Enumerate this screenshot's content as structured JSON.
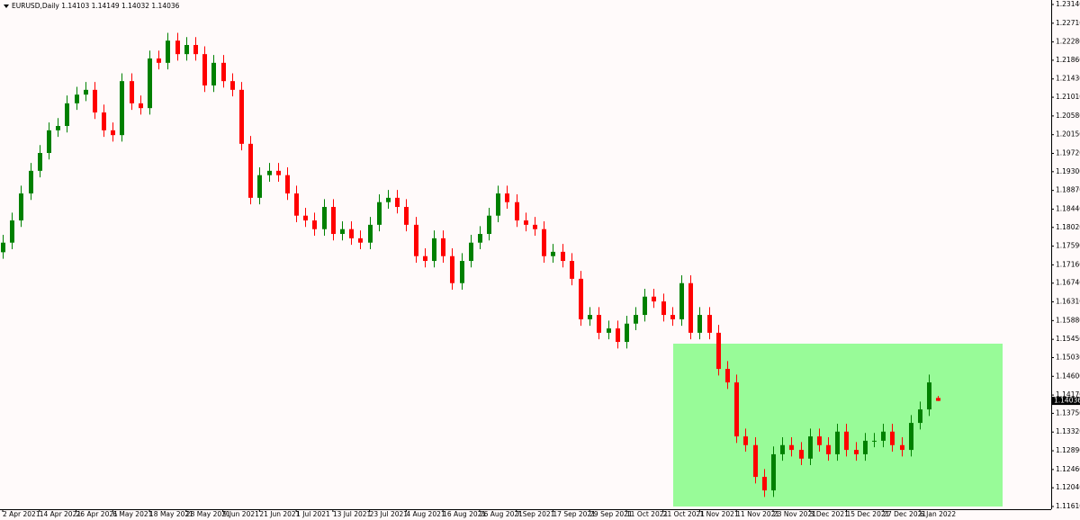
{
  "chart_data": {
    "type": "candlestick",
    "title": "EURUSD,Daily  1.14103 1.14149 1.14032 1.14036",
    "categories": [
      "2 Apr 2021",
      null,
      null,
      null,
      "14 Apr 2021",
      null,
      null,
      null,
      "26 Apr 2021",
      null,
      null,
      null,
      "6 May 2021",
      null,
      null,
      null,
      "18 May 2021",
      null,
      null,
      null,
      "28 May 2021",
      null,
      null,
      null,
      "9 Jun 2021",
      null,
      null,
      null,
      "21 Jun 2021",
      null,
      null,
      null,
      "1 Jul 2021",
      null,
      null,
      null,
      "13 Jul 2021",
      null,
      null,
      null,
      "23 Jul 2021",
      null,
      null,
      null,
      "4 Aug 2021",
      null,
      null,
      null,
      "16 Aug 2021",
      null,
      null,
      null,
      "26 Aug 2021",
      null,
      null,
      null,
      "7 Sep 2021",
      null,
      null,
      null,
      "17 Sep 2021",
      null,
      null,
      null,
      "29 Sep 2021",
      null,
      null,
      null,
      "11 Oct 2021",
      null,
      null,
      null,
      "21 Oct 2021",
      null,
      null,
      null,
      "1 Nov 2021",
      null,
      null,
      null,
      "11 Nov 2021",
      null,
      null,
      null,
      "23 Nov 2021",
      null,
      null,
      null,
      "3 Dec 2021",
      null,
      null,
      null,
      "15 Dec 2021",
      null,
      null,
      null,
      "27 Dec 2021",
      null,
      null,
      null,
      "6 Jan 2022",
      null,
      null
    ],
    "open": [
      1.1745,
      1.1767,
      1.1818,
      1.188,
      1.1932,
      1.1973,
      1.2025,
      1.2035,
      1.2087,
      1.2107,
      1.2118,
      1.2066,
      1.2025,
      1.2014,
      1.2138,
      1.2087,
      1.2076,
      1.219,
      1.218,
      1.2231,
      1.22,
      1.2221,
      1.22,
      1.2128,
      1.218,
      1.2138,
      1.2118,
      1.1994,
      1.187,
      1.1922,
      1.1932,
      1.1922,
      1.188,
      1.1829,
      1.1818,
      1.1798,
      1.1849,
      1.1787,
      1.1798,
      1.1777,
      1.1767,
      1.1808,
      1.186,
      1.187,
      1.1849,
      1.1808,
      1.1736,
      1.1725,
      1.1777,
      1.1736,
      1.1674,
      1.1725,
      1.1767,
      1.1787,
      1.1829,
      1.188,
      1.186,
      1.1818,
      1.1808,
      1.1798,
      1.1736,
      1.1746,
      1.1725,
      1.1684,
      1.1591,
      1.1601,
      1.156,
      1.157,
      1.1539,
      1.1581,
      1.1601,
      1.1643,
      1.1632,
      1.1601,
      1.1591,
      1.1674,
      1.156,
      1.1601,
      1.156,
      1.1477,
      1.1446,
      1.1322,
      1.1302,
      1.1229,
      1.1198,
      1.1281,
      1.1302,
      1.1291,
      1.1271,
      1.1322,
      1.1302,
      1.1281,
      1.1333,
      1.1291,
      1.1281,
      1.1312,
      1.1312,
      1.1333,
      1.1302,
      1.1291,
      1.1353,
      1.1384,
      1.14103
    ],
    "high": [
      1.1785,
      1.1836,
      1.1898,
      1.195,
      1.1991,
      1.2043,
      1.2053,
      1.2105,
      1.2125,
      1.2136,
      1.2136,
      1.2084,
      1.2043,
      1.2156,
      1.2156,
      1.2105,
      1.2208,
      1.2208,
      1.2249,
      1.2249,
      1.2239,
      1.2239,
      1.2218,
      1.2198,
      1.2198,
      1.2156,
      1.2136,
      1.2012,
      1.194,
      1.195,
      1.195,
      1.194,
      1.1898,
      1.1847,
      1.1836,
      1.1867,
      1.1867,
      1.1816,
      1.1816,
      1.1795,
      1.1826,
      1.1878,
      1.1888,
      1.1888,
      1.1867,
      1.1826,
      1.1754,
      1.1795,
      1.1795,
      1.1754,
      1.1743,
      1.1785,
      1.1805,
      1.1847,
      1.1898,
      1.1898,
      1.1878,
      1.1836,
      1.1826,
      1.1816,
      1.1764,
      1.1764,
      1.1743,
      1.1702,
      1.1619,
      1.1619,
      1.1588,
      1.1588,
      1.1599,
      1.1619,
      1.1661,
      1.1661,
      1.165,
      1.1619,
      1.1692,
      1.1692,
      1.1619,
      1.1619,
      1.1578,
      1.1495,
      1.1464,
      1.134,
      1.132,
      1.1247,
      1.1299,
      1.132,
      1.132,
      1.1309,
      1.134,
      1.134,
      1.132,
      1.1351,
      1.1351,
      1.1309,
      1.133,
      1.133,
      1.1351,
      1.1351,
      1.132,
      1.1371,
      1.1402,
      1.1464,
      1.14149
    ],
    "low": [
      1.173,
      1.1752,
      1.1803,
      1.1865,
      1.1917,
      1.1958,
      1.201,
      1.202,
      1.2072,
      1.2092,
      1.2051,
      1.201,
      1.1999,
      1.1999,
      1.2072,
      1.2061,
      1.2061,
      1.2165,
      1.2165,
      1.2185,
      1.2185,
      1.2185,
      1.2113,
      1.2113,
      1.2123,
      1.2103,
      1.1979,
      1.1855,
      1.1855,
      1.1907,
      1.1907,
      1.1865,
      1.1814,
      1.1803,
      1.1783,
      1.1783,
      1.1772,
      1.1772,
      1.1762,
      1.1752,
      1.1752,
      1.1793,
      1.1845,
      1.1834,
      1.1793,
      1.1721,
      1.171,
      1.171,
      1.1721,
      1.1659,
      1.1659,
      1.171,
      1.1752,
      1.1772,
      1.1814,
      1.1845,
      1.1803,
      1.1793,
      1.1783,
      1.1721,
      1.1721,
      1.171,
      1.1669,
      1.1576,
      1.1576,
      1.1545,
      1.1545,
      1.1524,
      1.1524,
      1.1566,
      1.1586,
      1.1617,
      1.1586,
      1.1576,
      1.1576,
      1.1545,
      1.1545,
      1.1545,
      1.1462,
      1.1431,
      1.1307,
      1.1287,
      1.1214,
      1.1183,
      1.1183,
      1.1266,
      1.1276,
      1.1256,
      1.1256,
      1.1287,
      1.1266,
      1.1266,
      1.1276,
      1.1266,
      1.1266,
      1.1297,
      1.1297,
      1.1287,
      1.1276,
      1.1276,
      1.1338,
      1.1369,
      1.14032
    ],
    "close": [
      1.1767,
      1.1818,
      1.188,
      1.1932,
      1.1973,
      1.2025,
      1.2035,
      1.2087,
      1.2107,
      1.2118,
      1.2066,
      1.2025,
      1.2014,
      1.2138,
      1.2087,
      1.2076,
      1.219,
      1.218,
      1.2231,
      1.22,
      1.2221,
      1.22,
      1.2128,
      1.218,
      1.2138,
      1.2118,
      1.1994,
      1.187,
      1.1922,
      1.1932,
      1.1922,
      1.188,
      1.1829,
      1.1818,
      1.1798,
      1.1849,
      1.1787,
      1.1798,
      1.1777,
      1.1767,
      1.1808,
      1.186,
      1.187,
      1.1849,
      1.1808,
      1.1736,
      1.1725,
      1.1777,
      1.1736,
      1.1674,
      1.1725,
      1.1767,
      1.1787,
      1.1829,
      1.188,
      1.186,
      1.1818,
      1.1808,
      1.1798,
      1.1736,
      1.1746,
      1.1725,
      1.1684,
      1.1591,
      1.1601,
      1.156,
      1.157,
      1.1539,
      1.1581,
      1.1601,
      1.1643,
      1.1632,
      1.1601,
      1.1591,
      1.1674,
      1.156,
      1.1601,
      1.156,
      1.1477,
      1.1446,
      1.1322,
      1.1302,
      1.1229,
      1.1198,
      1.1281,
      1.1302,
      1.1291,
      1.1271,
      1.1322,
      1.1302,
      1.1281,
      1.1333,
      1.1291,
      1.1281,
      1.1312,
      1.1312,
      1.1333,
      1.1302,
      1.1291,
      1.1353,
      1.1384,
      1.1446,
      1.14036
    ],
    "up_color": "#008000",
    "down_color": "#ff0000",
    "zone": {
      "high": 1.1535,
      "low": 1.1161,
      "color": "#98fb98"
    },
    "ylim": [
      1.11548,
      1.23243
    ],
    "yticks": [
      {
        "value": 1.2314,
        "label": "1.23140"
      },
      {
        "value": 1.2271,
        "label": "1.22710"
      },
      {
        "value": 1.2228,
        "label": "1.22280"
      },
      {
        "value": 1.2186,
        "label": "1.21860"
      },
      {
        "value": 1.2143,
        "label": "1.21430"
      },
      {
        "value": 1.2101,
        "label": "1.21010"
      },
      {
        "value": 1.2058,
        "label": "1.20580"
      },
      {
        "value": 1.2015,
        "label": "1.20150"
      },
      {
        "value": 1.1972,
        "label": "1.19720"
      },
      {
        "value": 1.193,
        "label": "1.19300"
      },
      {
        "value": 1.1887,
        "label": "1.18870"
      },
      {
        "value": 1.1844,
        "label": "1.18440"
      },
      {
        "value": 1.1802,
        "label": "1.18020"
      },
      {
        "value": 1.1759,
        "label": "1.17590"
      },
      {
        "value": 1.1716,
        "label": "1.17160"
      },
      {
        "value": 1.1674,
        "label": "1.16740"
      },
      {
        "value": 1.1631,
        "label": "1.16310"
      },
      {
        "value": 1.1588,
        "label": "1.15880"
      },
      {
        "value": 1.1545,
        "label": "1.15450"
      },
      {
        "value": 1.1503,
        "label": "1.15030"
      },
      {
        "value": 1.146,
        "label": "1.14600"
      },
      {
        "value": 1.1417,
        "label": "1.14170"
      },
      {
        "value": 1.1375,
        "label": "1.13750"
      },
      {
        "value": 1.1332,
        "label": "1.13320"
      },
      {
        "value": 1.1289,
        "label": "1.12890"
      },
      {
        "value": 1.1246,
        "label": "1.12460"
      },
      {
        "value": 1.1204,
        "label": "1.12040"
      },
      {
        "value": 1.1161,
        "label": "1.11610"
      }
    ],
    "grid": false
  }
}
